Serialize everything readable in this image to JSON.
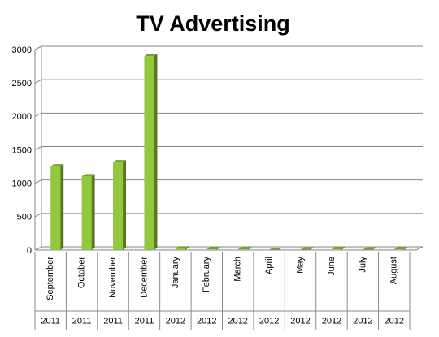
{
  "chart_data": {
    "type": "bar",
    "title": "TV Advertising",
    "categories": [
      "September",
      "October",
      "November",
      "December",
      "January",
      "February",
      "March",
      "April",
      "May",
      "June",
      "July",
      "August"
    ],
    "category_years": [
      "2011",
      "2011",
      "2011",
      "2011",
      "2012",
      "2012",
      "2012",
      "2012",
      "2012",
      "2012",
      "2012",
      "2012"
    ],
    "values": [
      1250,
      1100,
      1310,
      2900,
      20,
      10,
      10,
      0,
      5,
      10,
      5,
      10
    ],
    "color": "#92c83e",
    "ylim": [
      0,
      3000
    ],
    "yticks": [
      0,
      500,
      1000,
      1500,
      2000,
      2500,
      3000
    ],
    "grid": true
  }
}
